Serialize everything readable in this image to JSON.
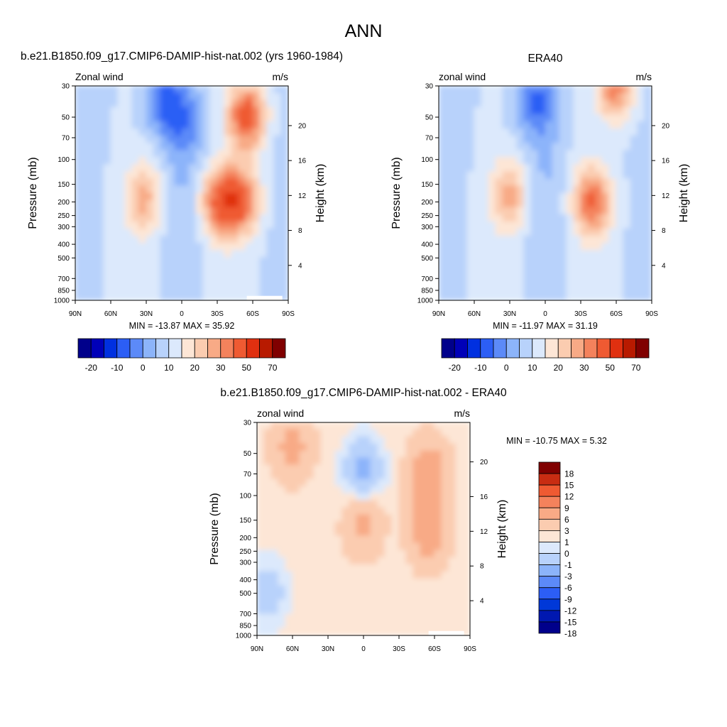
{
  "title": "ANN",
  "colors": {
    "full_field": [
      "#00008b",
      "#0000b8",
      "#0030e0",
      "#2c5ef5",
      "#5c8af8",
      "#8cb4fa",
      "#b8d2fb",
      "#dce9fc",
      "#fde6d6",
      "#fbccb0",
      "#f8aa86",
      "#f4825c",
      "#ef5a32",
      "#e03010",
      "#b81a00",
      "#800000"
    ],
    "diff": [
      "#00008b",
      "#0018b0",
      "#0038d8",
      "#2c5ef5",
      "#5c8af8",
      "#8cb4fa",
      "#b8d2fb",
      "#dce9fc",
      "#fde6d6",
      "#fbccb0",
      "#f8aa86",
      "#f4825c",
      "#ef5a32",
      "#c82c12",
      "#800000"
    ]
  },
  "panels": [
    {
      "title": "b.e21.B1850.f09_g17.CMIP6-DAMIP-hist-nat.002 (yrs 1960-1984)",
      "left_label": "Zonal wind",
      "right_label": "m/s",
      "ylabel": "Pressure (mb)",
      "ylabel_right": "Height (km)",
      "stats": "MIN = -13.87  MAX =  35.92",
      "colorbar_labels": [
        "-20",
        "-10",
        "0",
        "10",
        "20",
        "30",
        "50",
        "70"
      ]
    },
    {
      "title": "ERA40",
      "left_label": "zonal wind",
      "right_label": "m/s",
      "ylabel": "Pressure (mb)",
      "ylabel_right": "Height (km)",
      "stats": "MIN = -11.97  MAX =  31.19",
      "colorbar_labels": [
        "-20",
        "-10",
        "0",
        "10",
        "20",
        "30",
        "50",
        "70"
      ]
    },
    {
      "title": "b.e21.B1850.f09_g17.CMIP6-DAMIP-hist-nat.002 - ERA40",
      "left_label": "zonal wind",
      "right_label": "m/s",
      "ylabel": "Pressure (mb)",
      "ylabel_right": "Height (km)",
      "stats": "MIN = -10.75  MAX =   5.32",
      "colorbar_labels": [
        "18",
        "15",
        "12",
        "9",
        "6",
        "3",
        "1",
        "0",
        "-1",
        "-3",
        "-6",
        "-9",
        "-12",
        "-15",
        "-18"
      ]
    }
  ],
  "chart_data": [
    {
      "type": "heatmap",
      "title": "b.e21.B1850.f09_g17.CMIP6-DAMIP-hist-nat.002 (yrs 1960-1984)",
      "variable": "Zonal wind",
      "units": "m/s",
      "x_ticks": [
        "90N",
        "60N",
        "30N",
        "0",
        "30S",
        "60S",
        "90S"
      ],
      "y_ticks": [
        30,
        50,
        70,
        100,
        150,
        200,
        250,
        300,
        400,
        500,
        700,
        850,
        1000
      ],
      "y_scale": "log",
      "height_ticks_km": [
        4,
        8,
        12,
        16,
        20
      ],
      "min": -13.87,
      "max": 35.92,
      "levels": [
        -25,
        -20,
        -15,
        -10,
        -5,
        0,
        5,
        10,
        15,
        20,
        25,
        30,
        40,
        50,
        60,
        70
      ],
      "features": [
        {
          "lat": 32,
          "p": 190,
          "u": 22
        },
        {
          "lat": -32,
          "p": 200,
          "u": 30
        },
        {
          "lat": -50,
          "p": 200,
          "u": 31
        },
        {
          "lat": -55,
          "p": 50,
          "u": 35
        },
        {
          "lat": 15,
          "p": 40,
          "u": -12
        },
        {
          "lat": -5,
          "p": 60,
          "u": -8
        }
      ]
    },
    {
      "type": "heatmap",
      "title": "ERA40",
      "variable": "zonal wind",
      "units": "m/s",
      "x_ticks": [
        "90N",
        "60N",
        "30N",
        "0",
        "30S",
        "60S",
        "90S"
      ],
      "y_ticks": [
        30,
        50,
        70,
        100,
        150,
        200,
        250,
        300,
        400,
        500,
        700,
        850,
        1000
      ],
      "y_scale": "log",
      "height_ticks_km": [
        4,
        8,
        12,
        16,
        20
      ],
      "min": -11.97,
      "max": 31.19,
      "levels": [
        -25,
        -20,
        -15,
        -10,
        -5,
        0,
        5,
        10,
        15,
        20,
        25,
        30,
        40,
        50,
        60,
        70
      ],
      "features": [
        {
          "lat": 30,
          "p": 180,
          "u": 22
        },
        {
          "lat": -40,
          "p": 200,
          "u": 31
        },
        {
          "lat": -60,
          "p": 30,
          "u": 28
        },
        {
          "lat": 10,
          "p": 40,
          "u": -11
        }
      ]
    },
    {
      "type": "heatmap",
      "title": "b.e21.B1850.f09_g17.CMIP6-DAMIP-hist-nat.002 - ERA40",
      "variable": "zonal wind",
      "units": "m/s",
      "x_ticks": [
        "90N",
        "60N",
        "30N",
        "0",
        "30S",
        "60S",
        "90S"
      ],
      "y_ticks": [
        30,
        50,
        70,
        100,
        150,
        200,
        250,
        300,
        400,
        500,
        700,
        850,
        1000
      ],
      "y_scale": "log",
      "height_ticks_km": [
        4,
        8,
        12,
        16,
        20
      ],
      "min": -10.75,
      "max": 5.32,
      "levels": [
        -18,
        -15,
        -12,
        -9,
        -6,
        -3,
        -1,
        0,
        1,
        3,
        6,
        9,
        12,
        15,
        18
      ],
      "features": [
        {
          "lat": 60,
          "p": 45,
          "u": 4
        },
        {
          "lat": 0,
          "p": 150,
          "u": 4
        },
        {
          "lat": -55,
          "p": 70,
          "u": 5
        },
        {
          "lat": -55,
          "p": 180,
          "u": 5
        },
        {
          "lat": 0,
          "p": 70,
          "u": -4
        },
        {
          "lat": 80,
          "p": 500,
          "u": -2
        }
      ]
    }
  ]
}
